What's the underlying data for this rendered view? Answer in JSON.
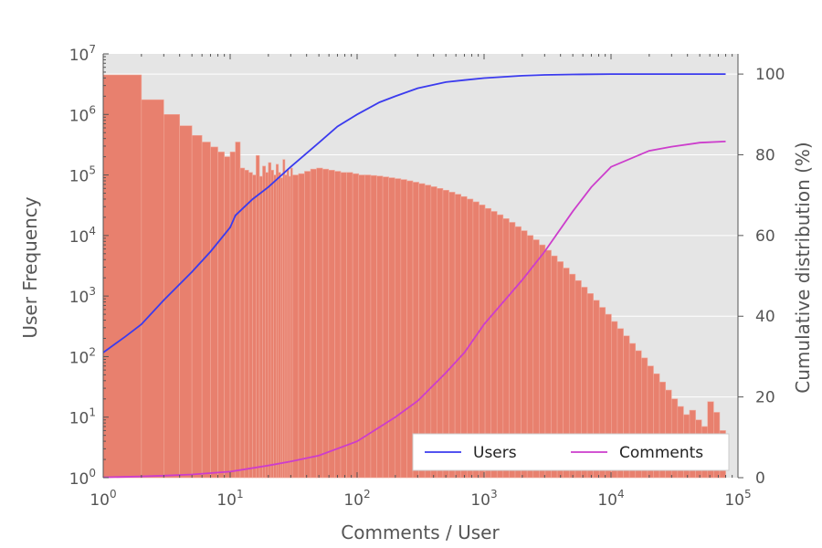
{
  "chart_data": {
    "type": "bar+line",
    "title": "",
    "xlabel": "Comments / User",
    "ylabel": "User Frequency",
    "y2label": "Cumulative distribution (%)",
    "xscale": "log",
    "yscale": "log",
    "xlim": [
      1,
      100000
    ],
    "ylim": [
      1,
      10000000
    ],
    "y2lim": [
      0,
      105
    ],
    "x_ticks": [
      {
        "value": 1,
        "base": "10",
        "exp": "0"
      },
      {
        "value": 10,
        "base": "10",
        "exp": "1"
      },
      {
        "value": 100,
        "base": "10",
        "exp": "2"
      },
      {
        "value": 1000,
        "base": "10",
        "exp": "3"
      },
      {
        "value": 10000,
        "base": "10",
        "exp": "4"
      },
      {
        "value": 100000,
        "base": "10",
        "exp": "5"
      }
    ],
    "y_ticks": [
      {
        "value": 1,
        "base": "10",
        "exp": "0"
      },
      {
        "value": 10,
        "base": "10",
        "exp": "1"
      },
      {
        "value": 100,
        "base": "10",
        "exp": "2"
      },
      {
        "value": 1000,
        "base": "10",
        "exp": "3"
      },
      {
        "value": 10000,
        "base": "10",
        "exp": "4"
      },
      {
        "value": 100000,
        "base": "10",
        "exp": "5"
      },
      {
        "value": 1000000,
        "base": "10",
        "exp": "6"
      },
      {
        "value": 10000000,
        "base": "10",
        "exp": "7"
      }
    ],
    "y2_ticks": [
      {
        "value": 0,
        "label": "0"
      },
      {
        "value": 20,
        "label": "20"
      },
      {
        "value": 40,
        "label": "40"
      },
      {
        "value": 60,
        "label": "60"
      },
      {
        "value": 80,
        "label": "80"
      },
      {
        "value": 100,
        "label": "100"
      }
    ],
    "grid": true,
    "legend_position": "bottom-right",
    "colors": {
      "plot_background": "#e5e5e5",
      "bars": "#e8806e",
      "users_line": "#3b3bee",
      "comments_line": "#cc3dcc",
      "grid": "#ffffff"
    },
    "histogram": {
      "name": "User Frequency",
      "bins": [
        {
          "x0": 1,
          "x1": 2,
          "count": 4500000
        },
        {
          "x0": 2,
          "x1": 3,
          "count": 1750000
        },
        {
          "x0": 3,
          "x1": 4,
          "count": 1000000
        },
        {
          "x0": 4,
          "x1": 5,
          "count": 650000
        },
        {
          "x0": 5,
          "x1": 6,
          "count": 450000
        },
        {
          "x0": 6,
          "x1": 7,
          "count": 350000
        },
        {
          "x0": 7,
          "x1": 8,
          "count": 290000
        },
        {
          "x0": 8,
          "x1": 9,
          "count": 240000
        },
        {
          "x0": 9,
          "x1": 10,
          "count": 200000
        },
        {
          "x0": 10,
          "x1": 11,
          "count": 240000
        },
        {
          "x0": 11,
          "x1": 12,
          "count": 350000
        },
        {
          "x0": 12,
          "x1": 13,
          "count": 130000
        },
        {
          "x0": 13,
          "x1": 14,
          "count": 120000
        },
        {
          "x0": 14,
          "x1": 15,
          "count": 110000
        },
        {
          "x0": 15,
          "x1": 16,
          "count": 100000
        },
        {
          "x0": 16,
          "x1": 17,
          "count": 210000
        },
        {
          "x0": 17,
          "x1": 18,
          "count": 95000
        },
        {
          "x0": 18,
          "x1": 19,
          "count": 140000
        },
        {
          "x0": 19,
          "x1": 20,
          "count": 110000
        },
        {
          "x0": 20,
          "x1": 21,
          "count": 160000
        },
        {
          "x0": 21,
          "x1": 22,
          "count": 120000
        },
        {
          "x0": 22,
          "x1": 23,
          "count": 100000
        },
        {
          "x0": 23,
          "x1": 24,
          "count": 150000
        },
        {
          "x0": 24,
          "x1": 25,
          "count": 110000
        },
        {
          "x0": 25,
          "x1": 26,
          "count": 90000
        },
        {
          "x0": 26,
          "x1": 27,
          "count": 180000
        },
        {
          "x0": 27,
          "x1": 28,
          "count": 100000
        },
        {
          "x0": 28,
          "x1": 29,
          "count": 120000
        },
        {
          "x0": 29,
          "x1": 30,
          "count": 95000
        },
        {
          "x0": 30,
          "x1": 31,
          "count": 130000
        }
      ],
      "log_bins": {
        "start": 31,
        "end": 80000,
        "count": 72,
        "counts": [
          100000,
          105000,
          115000,
          125000,
          130000,
          125000,
          120000,
          115000,
          110000,
          110000,
          105000,
          100000,
          100000,
          98000,
          96000,
          93000,
          90000,
          87000,
          84000,
          80000,
          76000,
          72000,
          68000,
          64000,
          60000,
          56000,
          52000,
          48000,
          44000,
          40000,
          36000,
          32000,
          28000,
          25000,
          22000,
          19000,
          16500,
          14000,
          12000,
          10000,
          8500,
          7000,
          5700,
          4600,
          3700,
          2900,
          2300,
          1800,
          1400,
          1100,
          850,
          650,
          500,
          380,
          290,
          220,
          165,
          125,
          95,
          70,
          52,
          38,
          28,
          20,
          15,
          11,
          13,
          9,
          7,
          18,
          12,
          6
        ]
      }
    },
    "series": [
      {
        "name": "Users",
        "axis": "y2",
        "x": [
          1,
          1.5,
          2,
          3,
          5,
          7,
          10,
          11,
          15,
          20,
          30,
          50,
          70,
          100,
          150,
          200,
          300,
          500,
          700,
          1000,
          2000,
          3000,
          5000,
          10000,
          20000,
          50000,
          80000
        ],
        "values": [
          31,
          35,
          38,
          44,
          51,
          56,
          62,
          65,
          69,
          72,
          77,
          83,
          87,
          90,
          93,
          94.5,
          96.5,
          98,
          98.5,
          99,
          99.6,
          99.8,
          99.9,
          100,
          100,
          100,
          100
        ]
      },
      {
        "name": "Comments",
        "axis": "y2",
        "x": [
          1,
          2,
          3,
          5,
          10,
          20,
          30,
          50,
          100,
          200,
          300,
          500,
          700,
          1000,
          2000,
          3000,
          5000,
          7000,
          10000,
          20000,
          30000,
          50000,
          80000
        ],
        "values": [
          0.1,
          0.3,
          0.5,
          0.8,
          1.5,
          3,
          4,
          5.5,
          9,
          15,
          19,
          26,
          31,
          38,
          49,
          56,
          66,
          72,
          77,
          81,
          82,
          83,
          83.3
        ]
      }
    ]
  }
}
